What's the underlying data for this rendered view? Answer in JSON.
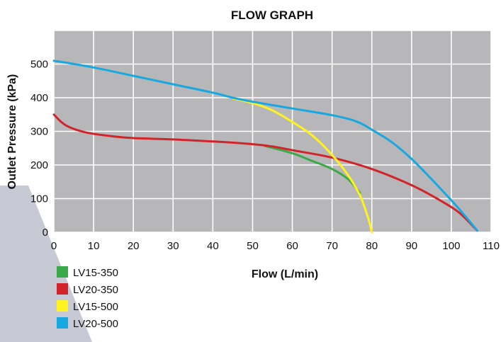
{
  "chart_data": {
    "type": "line",
    "title": "FLOW GRAPH",
    "xlabel": "Flow (L/min)",
    "ylabel": "Outlet Pressure (kPa)",
    "xlim": [
      0,
      110
    ],
    "ylim": [
      0,
      600
    ],
    "x_ticks": [
      0,
      10,
      20,
      30,
      40,
      50,
      60,
      70,
      80,
      90,
      100,
      110
    ],
    "y_ticks": [
      0,
      100,
      200,
      300,
      400,
      500
    ],
    "grid": true,
    "plot_background": "#b7b7b9",
    "grid_color": "#ffffff",
    "legend_position": "bottom-left",
    "series": [
      {
        "name": "LV15-350",
        "color": "#3aaa49",
        "points": [
          [
            53,
            257
          ],
          [
            60,
            235
          ],
          [
            65,
            212
          ],
          [
            70,
            188
          ],
          [
            74,
            158
          ],
          [
            77,
            117
          ]
        ]
      },
      {
        "name": "LV20-350",
        "color": "#d2232a",
        "points": [
          [
            0,
            350
          ],
          [
            3,
            318
          ],
          [
            8,
            297
          ],
          [
            15,
            285
          ],
          [
            20,
            280
          ],
          [
            30,
            276
          ],
          [
            40,
            270
          ],
          [
            50,
            262
          ],
          [
            55,
            255
          ],
          [
            60,
            244
          ],
          [
            70,
            222
          ],
          [
            80,
            188
          ],
          [
            90,
            140
          ],
          [
            97,
            96
          ],
          [
            102,
            58
          ],
          [
            106.5,
            5
          ]
        ]
      },
      {
        "name": "LV15-500",
        "color": "#fff21f",
        "points": [
          [
            45,
            398
          ],
          [
            50,
            384
          ],
          [
            55,
            362
          ],
          [
            60,
            328
          ],
          [
            65,
            288
          ],
          [
            70,
            230
          ],
          [
            74,
            170
          ],
          [
            77,
            110
          ],
          [
            79,
            45
          ],
          [
            80,
            0
          ]
        ]
      },
      {
        "name": "LV20-500",
        "color": "#17a8e1",
        "points": [
          [
            0,
            510
          ],
          [
            10,
            490
          ],
          [
            20,
            465
          ],
          [
            30,
            440
          ],
          [
            40,
            415
          ],
          [
            45,
            400
          ],
          [
            50,
            388
          ],
          [
            60,
            368
          ],
          [
            70,
            348
          ],
          [
            76,
            330
          ],
          [
            80,
            305
          ],
          [
            85,
            268
          ],
          [
            90,
            218
          ],
          [
            95,
            158
          ],
          [
            100,
            95
          ],
          [
            103,
            55
          ],
          [
            106.5,
            5
          ]
        ]
      }
    ]
  }
}
